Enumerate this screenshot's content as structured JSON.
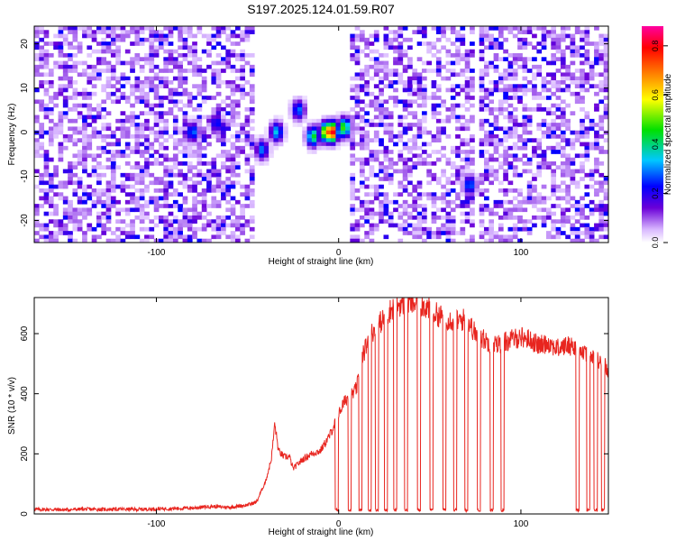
{
  "title": "S197.2025.124.01.59.R07",
  "chart_data": [
    {
      "type": "heatmap",
      "title": "S197.2025.124.01.59.R07",
      "xlabel": "Height of straight line (km)",
      "ylabel": "Frequency (Hz)",
      "xlim": [
        -167,
        148
      ],
      "ylim": [
        -25,
        24
      ],
      "xticks": [
        -100,
        0,
        100
      ],
      "yticks": [
        -20,
        -10,
        0,
        10,
        20
      ],
      "colorbar": {
        "label": "Normalized spectral amplitude",
        "range": [
          0.0,
          0.88
        ],
        "ticks": [
          0.0,
          0.2,
          0.4,
          0.6,
          0.8
        ],
        "colormap": [
          "#ffffff",
          "#d9b8ff",
          "#6a00d8",
          "#0000ff",
          "#00c8ff",
          "#00e000",
          "#ffff00",
          "#ff8000",
          "#ff0000",
          "#ff00a0"
        ]
      },
      "noise_region_level": 0.15,
      "quiet_gaps_km": [
        [
          -46,
          7
        ],
        [
          74,
          78
        ]
      ],
      "features": [
        {
          "x": -80,
          "y": 0,
          "amp": 0.3
        },
        {
          "x": -67,
          "y": 2,
          "amp": 0.25
        },
        {
          "x": -42,
          "y": -4,
          "amp": 0.3
        },
        {
          "x": -34,
          "y": 0,
          "amp": 0.35
        },
        {
          "x": -22,
          "y": 5,
          "amp": 0.3
        },
        {
          "x": -14,
          "y": -1,
          "amp": 0.45
        },
        {
          "x": -7,
          "y": 0,
          "amp": 0.6
        },
        {
          "x": -4,
          "y": 0,
          "amp": 0.88
        },
        {
          "x": 3,
          "y": 1,
          "amp": 0.5
        },
        {
          "x": 72,
          "y": -12,
          "amp": 0.3
        }
      ]
    },
    {
      "type": "line",
      "xlabel": "Height of straight line (km)",
      "ylabel": "SNR (10 * v/v)",
      "xlim": [
        -167,
        148
      ],
      "ylim": [
        0,
        720
      ],
      "xticks": [
        -100,
        0,
        100
      ],
      "yticks": [
        0,
        200,
        400,
        600
      ],
      "color": "#e8251f",
      "series": [
        {
          "x": [
            -167,
            -160,
            -150,
            -140,
            -130,
            -120,
            -110,
            -100,
            -90,
            -80,
            -70,
            -60,
            -50,
            -45,
            -40,
            -37,
            -35,
            -33,
            -30,
            -27,
            -25,
            -20,
            -15,
            -10,
            -5,
            0,
            2,
            5,
            8,
            10,
            12,
            15,
            18,
            20,
            25,
            30,
            35,
            40,
            45,
            50,
            55,
            60,
            65,
            70,
            75,
            80,
            85,
            90,
            95,
            100,
            105,
            110,
            115,
            120,
            125,
            130,
            135,
            140,
            145,
            148
          ],
          "values": [
            15,
            15,
            14,
            16,
            15,
            16,
            15,
            17,
            18,
            20,
            25,
            22,
            30,
            40,
            110,
            180,
            300,
            210,
            190,
            190,
            150,
            180,
            200,
            210,
            260,
            330,
            360,
            390,
            400,
            420,
            500,
            560,
            600,
            620,
            650,
            690,
            700,
            700,
            700,
            680,
            660,
            650,
            640,
            650,
            600,
            580,
            560,
            570,
            580,
            590,
            580,
            560,
            570,
            550,
            560,
            560,
            530,
            520,
            500,
            480
          ]
        }
      ],
      "dropouts_km": [
        -1,
        6,
        12,
        17,
        21,
        26,
        31,
        37,
        44,
        51,
        58,
        64,
        70,
        77,
        84,
        90,
        131,
        137,
        141,
        145
      ]
    }
  ]
}
